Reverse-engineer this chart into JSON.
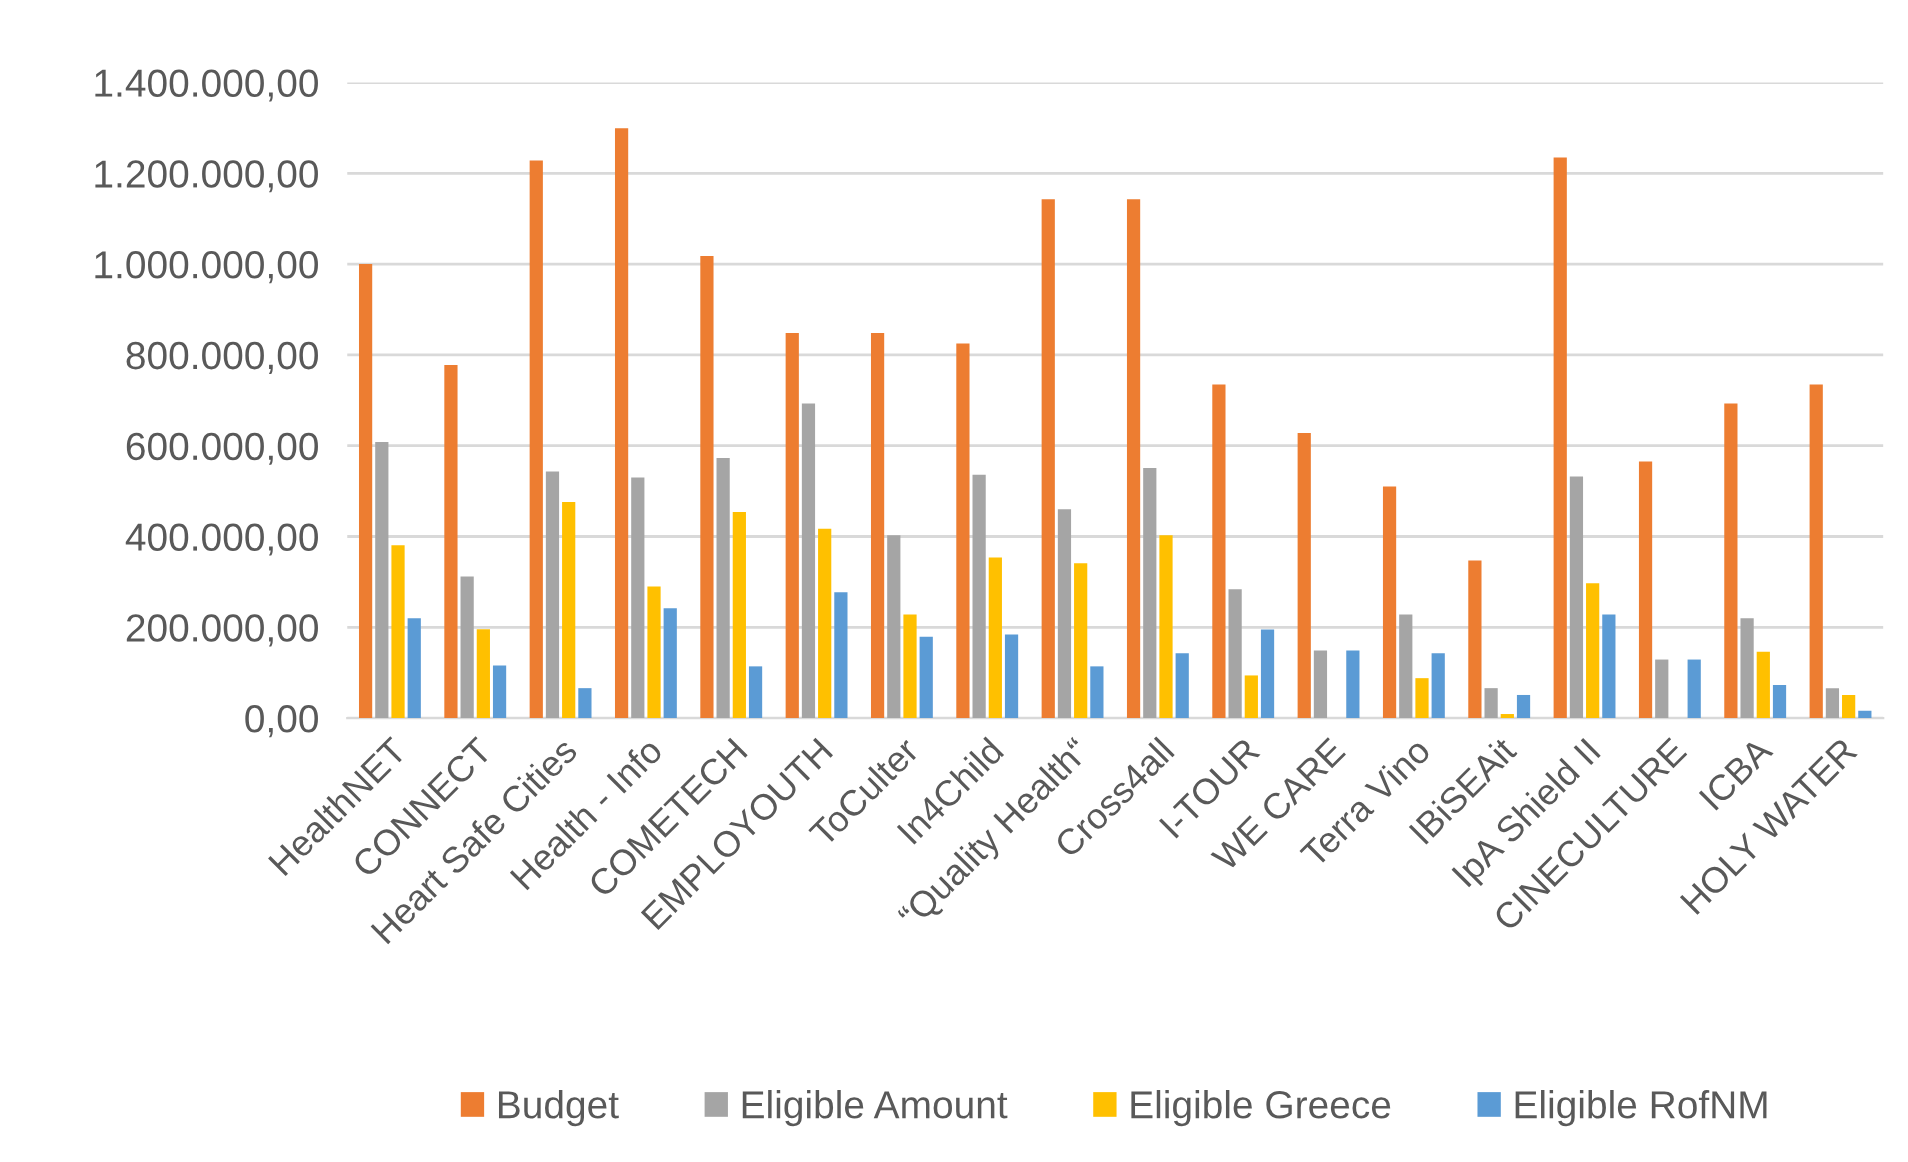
{
  "chart_data": {
    "type": "bar",
    "categories": [
      "HealthNET",
      "CONNECT",
      "Heart Safe Cities",
      "Health - Info",
      "COMETECH",
      "EMPLOYOUTH",
      "ToCulter",
      "In4Child",
      "“Quality Health“",
      "Cross4all",
      "I-TOUR",
      "WE CARE",
      "Terra Vino",
      "IBiSEAit",
      "IpA Shield II",
      "CINECULTURE",
      "ICBA",
      "HOLY WATER"
    ],
    "series": [
      {
        "name": "Budget",
        "color": "#ed7d31",
        "values": [
          1000000,
          778000,
          1228000,
          1299000,
          1018000,
          848000,
          848000,
          825000,
          1143000,
          1143000,
          735000,
          628000,
          510000,
          347000,
          1235000,
          565000,
          693000,
          735000
        ]
      },
      {
        "name": "Eligible Amount",
        "color": "#a5a5a5",
        "values": [
          608000,
          312000,
          543000,
          530000,
          573000,
          693000,
          403000,
          536000,
          460000,
          551000,
          284000,
          149000,
          228000,
          66000,
          532000,
          129000,
          220000,
          66000
        ]
      },
      {
        "name": "Eligible Greece",
        "color": "#ffc000",
        "values": [
          381000,
          196000,
          476000,
          290000,
          454000,
          417000,
          228000,
          354000,
          341000,
          403000,
          94000,
          0,
          88000,
          9000,
          297000,
          0,
          146000,
          51000
        ]
      },
      {
        "name": "Eligible RofNM",
        "color": "#5b9bd5",
        "values": [
          220000,
          116000,
          66000,
          242000,
          114000,
          277000,
          179000,
          184000,
          114000,
          143000,
          195000,
          149000,
          143000,
          51000,
          228000,
          129000,
          73000,
          16000
        ]
      }
    ],
    "ylim": [
      0,
      1400000
    ],
    "yticks": [
      {
        "value": 0,
        "label": "0,00"
      },
      {
        "value": 200000,
        "label": "200.000,00"
      },
      {
        "value": 400000,
        "label": "400.000,00"
      },
      {
        "value": 600000,
        "label": "600.000,00"
      },
      {
        "value": 800000,
        "label": "800.000,00"
      },
      {
        "value": 1000000,
        "label": "1.000.000,00"
      },
      {
        "value": 1200000,
        "label": "1.200.000,00"
      },
      {
        "value": 1400000,
        "label": "1.400.000,00"
      }
    ],
    "grid": "y",
    "legend": "bottom"
  }
}
